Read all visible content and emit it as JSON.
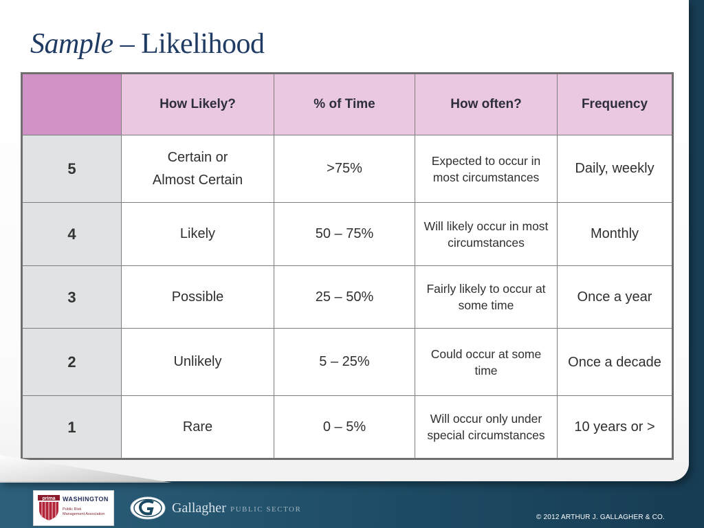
{
  "title": {
    "italic": "Sample",
    "rest": " – Likelihood"
  },
  "table": {
    "headers": [
      "",
      "How Likely?",
      "% of Time",
      "How often?",
      "Frequency"
    ],
    "rows": [
      {
        "rank": "5",
        "likely_line1": "Certain or",
        "likely_line2": "Almost Certain",
        "percent": ">75%",
        "often": "Expected to occur in most circumstances",
        "frequency": "Daily, weekly"
      },
      {
        "rank": "4",
        "likely": "Likely",
        "percent": "50 – 75%",
        "often": "Will likely occur in most circumstances",
        "frequency": "Monthly"
      },
      {
        "rank": "3",
        "likely": "Possible",
        "percent": "25 – 50%",
        "often": "Fairly likely to occur at some time",
        "frequency": "Once a year"
      },
      {
        "rank": "2",
        "likely": "Unlikely",
        "percent": "5 – 25%",
        "often": "Could occur at some time",
        "frequency": "Once a decade"
      },
      {
        "rank": "1",
        "likely": "Rare",
        "percent": "0 – 5%",
        "often": "Will occur only under special circumstances",
        "frequency": "10 years or >"
      }
    ]
  },
  "footer": {
    "prima_logo_text": "prima",
    "prima_state": "WASHINGTON",
    "prima_assoc": "Public Risk\nManagement Association",
    "company": "Gallagher",
    "division": "PUBLIC SECTOR",
    "copyright": "© 2012  ARTHUR J. GALLAGHER & CO."
  },
  "colors": {
    "header_pink": "#eac8e2",
    "corner_pink": "#d193c6",
    "rank_gray": "#dfe3e3",
    "title_blue": "#1f3b63",
    "background_blue": "#1f4e66"
  }
}
